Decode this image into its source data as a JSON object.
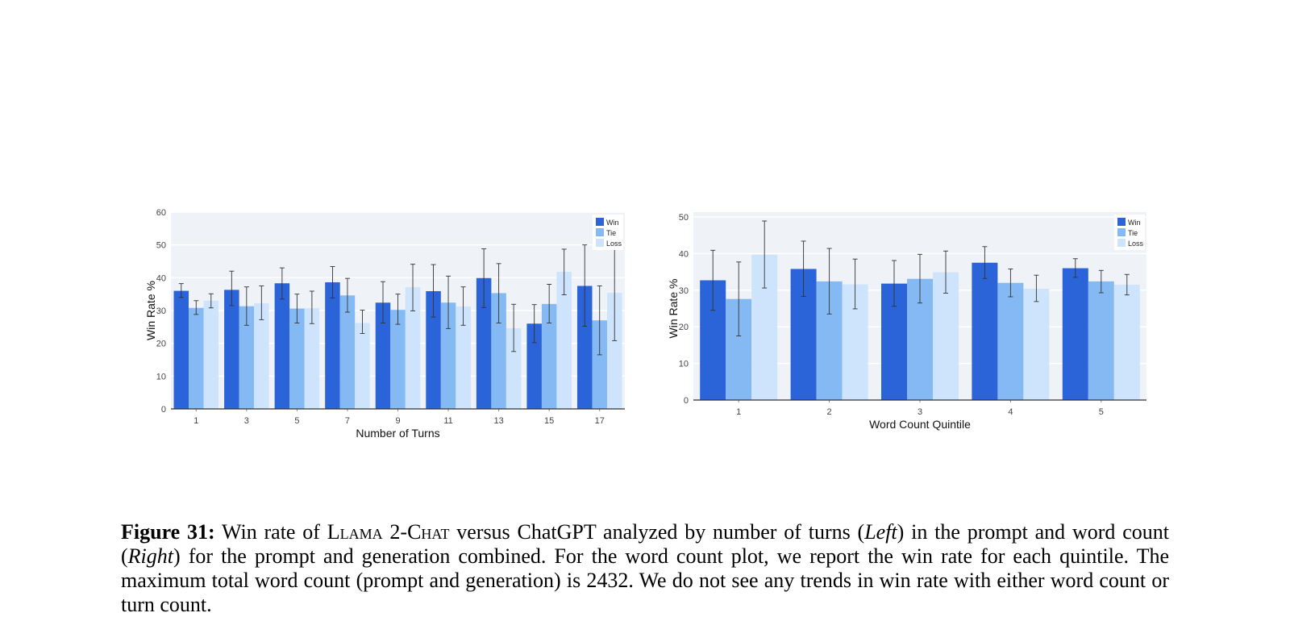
{
  "colors": {
    "win": "#2b63d9",
    "tie": "#84b9f3",
    "loss": "#cde4fc",
    "plot_bg": "#eff2f6",
    "grid": "#ffffff",
    "axis": "#333333",
    "err": "#333333"
  },
  "chart_data": [
    {
      "type": "bar",
      "id": "left",
      "xlabel": "Number of Turns",
      "ylabel": "Win Rate %",
      "ylim": [
        0,
        60
      ],
      "yticks": [
        0,
        10,
        20,
        30,
        40,
        50,
        60
      ],
      "categories": [
        "1",
        "3",
        "5",
        "7",
        "9",
        "11",
        "13",
        "15",
        "17"
      ],
      "legend": "top-right",
      "grid": true,
      "series": [
        {
          "name": "Win",
          "values": [
            36,
            36.3,
            38.3,
            38.6,
            32.4,
            35.9,
            39.9,
            26,
            37.5
          ],
          "err_low": [
            34,
            31.5,
            33.5,
            33.8,
            26.2,
            28,
            30.9,
            20.2,
            25.2
          ],
          "err_high": [
            38.2,
            42,
            43,
            43.4,
            38.8,
            44,
            48.8,
            31.8,
            50
          ]
        },
        {
          "name": "Tie",
          "values": [
            30.8,
            31.3,
            30.6,
            34.6,
            30.2,
            32.4,
            35.3,
            32,
            27
          ],
          "err_low": [
            28.8,
            25.5,
            26.2,
            29.5,
            25.8,
            24.5,
            26.2,
            26.2,
            16.5
          ],
          "err_high": [
            33,
            37.2,
            35,
            39.8,
            35,
            40.5,
            44.3,
            38,
            37.5
          ]
        },
        {
          "name": "Loss",
          "values": [
            33,
            32.2,
            30.7,
            26.2,
            37.1,
            31.2,
            24.6,
            41.8,
            35.4
          ],
          "err_low": [
            30.8,
            27.2,
            26,
            23,
            29.9,
            25.5,
            17.5,
            34.8,
            20.8
          ],
          "err_high": [
            35.1,
            37.5,
            35.9,
            30.1,
            44.1,
            37.2,
            31.9,
            48.7,
            49.8
          ]
        }
      ]
    },
    {
      "type": "bar",
      "id": "right",
      "xlabel": "Word Count Quintile",
      "ylabel": "Win Rate %",
      "ylim": [
        0,
        50
      ],
      "yticks": [
        0,
        10,
        20,
        30,
        40,
        50
      ],
      "categories": [
        "1",
        "2",
        "3",
        "4",
        "5"
      ],
      "legend": "top-right",
      "grid": true,
      "series": [
        {
          "name": "Win",
          "values": [
            32.7,
            35.8,
            31.8,
            37.5,
            36
          ],
          "err_low": [
            24.5,
            28.3,
            25.6,
            33.2,
            33.5
          ],
          "err_high": [
            40.9,
            43.4,
            38.1,
            41.9,
            38.6
          ]
        },
        {
          "name": "Tie",
          "values": [
            27.6,
            32.4,
            33.1,
            32,
            32.4
          ],
          "err_low": [
            17.5,
            23.5,
            26.5,
            28.2,
            29.3
          ],
          "err_high": [
            37.7,
            41.4,
            39.8,
            35.8,
            35.4
          ]
        },
        {
          "name": "Loss",
          "values": [
            39.7,
            31.6,
            34.9,
            30.4,
            31.5
          ],
          "err_low": [
            30.6,
            24.9,
            29.2,
            26.9,
            28.7
          ],
          "err_high": [
            48.9,
            38.5,
            40.7,
            34.1,
            34.3
          ]
        }
      ]
    }
  ],
  "caption": {
    "label": "Figure 31:",
    "t1": " Win rate of ",
    "model": "Llama 2-Chat",
    "t2": " versus ChatGPT analyzed by number of turns (",
    "left": "Left",
    "t3": ") in the prompt and word count (",
    "right": "Right",
    "t4": ") for the prompt and generation combined. For the word count plot, we report the win rate for each quintile. The maximum total word count (prompt and generation) is 2432. We do not see any trends in win rate with either word count or turn count."
  }
}
